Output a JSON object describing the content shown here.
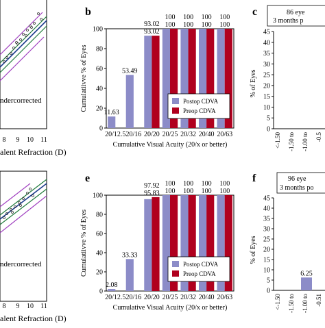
{
  "panels": {
    "left_top": {
      "annotation": "ndercorrected",
      "axis_label": "alent Refraction (D)",
      "ticks": [
        "8",
        "9",
        "10",
        "11"
      ]
    },
    "left_bottom": {
      "annotation": "ndercorrected",
      "axis_label": "alent Refraction (D)",
      "ticks": [
        "8",
        "9",
        "10",
        "11"
      ]
    },
    "c": {
      "letter": "c",
      "box_line1": "86 eye",
      "box_line2": "3 months p",
      "ylabel": "% of Eyes",
      "ticks": [
        "45",
        "40",
        "35",
        "30",
        "25",
        "20",
        "15",
        "10",
        "5",
        "0"
      ],
      "xticks": [
        "<-1.50",
        "-1.50 to",
        "-1.00 to",
        "-0.5"
      ]
    },
    "f": {
      "letter": "f",
      "box_line1": "96 eye",
      "box_line2": "3 months po",
      "ylabel": "% of Eyes",
      "ticks": [
        "45",
        "40",
        "35",
        "30",
        "25",
        "20",
        "15",
        "10",
        "5",
        "0"
      ],
      "bar_value": 6.25,
      "bar_label": "6.25",
      "xticks": [
        "<-1.50",
        "-1.50 to",
        "-1.00 to",
        "-0.51"
      ]
    }
  },
  "chart_data": [
    {
      "panel": "b",
      "type": "bar",
      "categories": [
        "20/12.5",
        "20/16",
        "20/20",
        "20/25",
        "20/32",
        "20/40",
        "20/63"
      ],
      "series": [
        {
          "name": "Postop CDVA",
          "values": [
            11.63,
            53.49,
            93.02,
            100,
            100,
            100,
            100
          ],
          "labels": [
            "11.63",
            "53.49",
            "93.02",
            "100",
            "100",
            "100",
            "100"
          ],
          "color": "#8c8cc8"
        },
        {
          "name": "Preop CDVA",
          "values": [
            null,
            null,
            93.02,
            100,
            100,
            100,
            100
          ],
          "labels": [
            "",
            "",
            "93.02",
            "100",
            "100",
            "100",
            "100"
          ],
          "color": "#b0001e"
        }
      ],
      "xlabel": "Cumulative Visual Acuity (20/x or better)",
      "ylabel": "Cumulatiivve % of Eyes",
      "ylim": [
        0,
        100
      ],
      "yticks": [
        "0",
        "20",
        "40",
        "60",
        "80",
        "100"
      ],
      "legend": "bottom-right"
    },
    {
      "panel": "e",
      "type": "bar",
      "categories": [
        "20/12.5",
        "20/16",
        "20/20",
        "20/25",
        "20/32",
        "20/40",
        "20/63"
      ],
      "series": [
        {
          "name": "Postop CDVA",
          "values": [
            2.08,
            33.33,
            95.83,
            100,
            100,
            100,
            100
          ],
          "labels": [
            "2.08",
            "33.33",
            "95.83",
            "100",
            "100",
            "100",
            "100"
          ],
          "color": "#8c8cc8"
        },
        {
          "name": "Preop CDVA",
          "values": [
            null,
            null,
            97.92,
            100,
            100,
            100,
            100
          ],
          "labels": [
            "",
            "",
            "97.92",
            "100",
            "100",
            "100",
            "100"
          ],
          "color": "#b0001e"
        }
      ],
      "xlabel": "Cumulative Visual Acuity (20/x or better)",
      "ylabel": "Cumulatiivve % of Eyes",
      "ylim": [
        0,
        100
      ],
      "yticks": [
        "0",
        "20",
        "40",
        "60",
        "80",
        "100"
      ],
      "legend": "bottom-right"
    }
  ]
}
